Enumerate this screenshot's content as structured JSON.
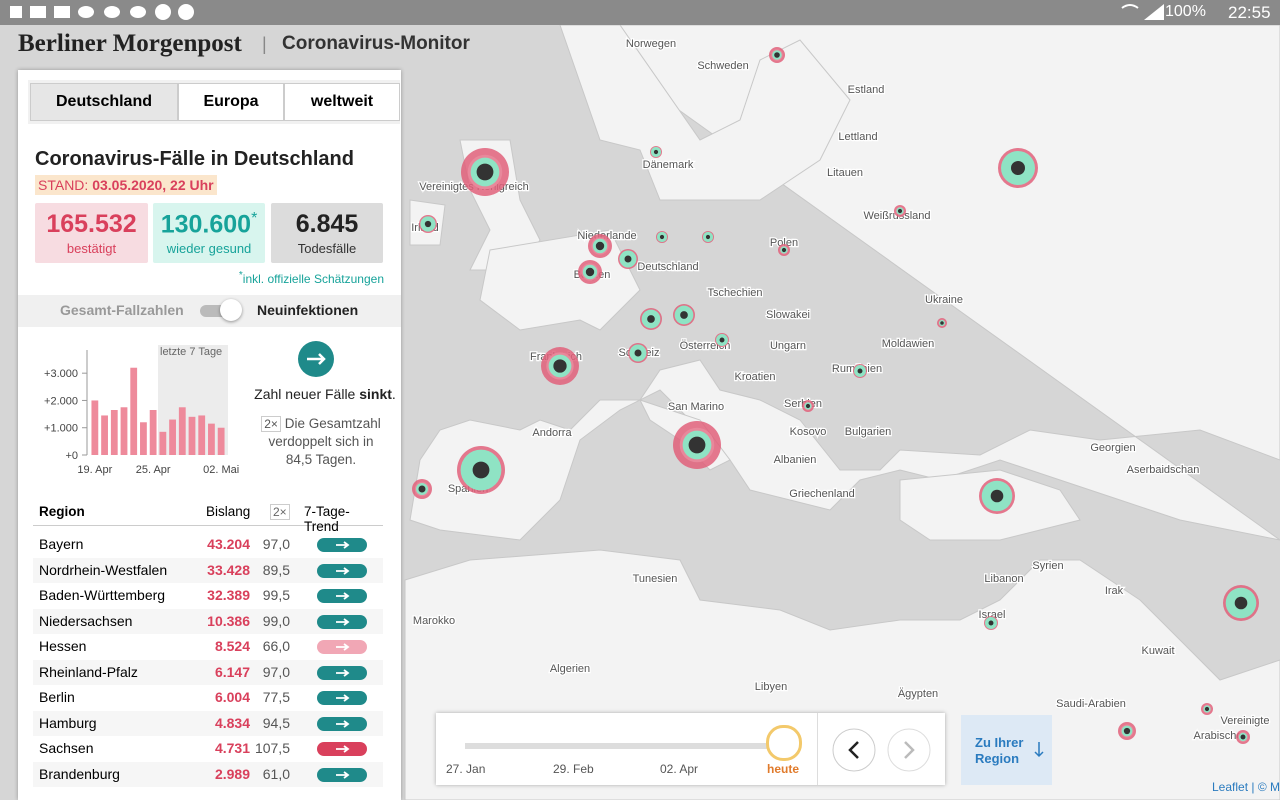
{
  "status_bar": {
    "battery": "100%",
    "time": "22:55"
  },
  "header": {
    "brand": "Berliner Morgenpost",
    "separator": "|",
    "title": "Coronavirus-Monitor"
  },
  "tabs": [
    "Deutschland",
    "Europa",
    "weltweit"
  ],
  "panel": {
    "title": "Coronavirus-Fälle in Deutschland",
    "stand_label": "STAND:",
    "stand_value": "03.05.2020, 22 Uhr",
    "stats": [
      {
        "value": "165.532",
        "label": "bestätigt",
        "color": "#d9405c",
        "bg": "#f7dce1"
      },
      {
        "value": "130.600",
        "mark": "*",
        "label": "wieder gesund",
        "color": "#17a39a",
        "bg": "#d8f5ee"
      },
      {
        "value": "6.845",
        "label": "Todesfälle",
        "color": "#222222",
        "bg": "#dcdcdc"
      }
    ],
    "footnote_mark": "*",
    "footnote": "inkl. offizielle Schätzungen",
    "toggle": {
      "left": "Gesamt-Fallzahlen",
      "right": "Neuinfektionen"
    }
  },
  "new_cases_chart": {
    "type": "bar",
    "color": "#ee8a9b",
    "shade_label": "letzte 7 Tage",
    "categories": [
      "19. Apr",
      null,
      null,
      null,
      null,
      null,
      "25. Apr",
      null,
      null,
      null,
      null,
      null,
      null,
      "02. Mai"
    ],
    "values": [
      2000,
      1450,
      1650,
      1750,
      3200,
      1200,
      1650,
      850,
      1300,
      1750,
      1400,
      1450,
      1150,
      1000
    ],
    "ylim": [
      0,
      3300
    ],
    "yticks": [
      {
        "value": 0,
        "label": "+0"
      },
      {
        "value": 1000,
        "label": "+1.000"
      },
      {
        "value": 2000,
        "label": "+2.000"
      },
      {
        "value": 3000,
        "label": "+3.000"
      }
    ]
  },
  "trend": {
    "text": "Zahl neuer Fälle",
    "word": "sinkt",
    "end": ".",
    "badge": "2×",
    "doubling_text": "Die Gesamtzahl verdoppelt sich in 84,5 Tagen."
  },
  "table": {
    "headers": [
      "Region",
      "Bislang",
      "2×",
      "7-Tage-Trend"
    ],
    "rows": [
      [
        "Bayern",
        "43.204",
        "97,0",
        "#1f8a8a"
      ],
      [
        "Nordrhein-Westfalen",
        "33.428",
        "89,5",
        "#1f8a8a"
      ],
      [
        "Baden-Württemberg",
        "32.389",
        "99,5",
        "#1f8a8a"
      ],
      [
        "Niedersachsen",
        "10.386",
        "99,0",
        "#1f8a8a"
      ],
      [
        "Hessen",
        "8.524",
        "66,0",
        "#f1a7b5"
      ],
      [
        "Rheinland-Pfalz",
        "6.147",
        "97,0",
        "#1f8a8a"
      ],
      [
        "Berlin",
        "6.004",
        "77,5",
        "#1f8a8a"
      ],
      [
        "Hamburg",
        "4.834",
        "94,5",
        "#1f8a8a"
      ],
      [
        "Sachsen",
        "4.731",
        "107,5",
        "#d9405c"
      ],
      [
        "Brandenburg",
        "2.989",
        "61,0",
        "#1f8a8a"
      ]
    ]
  },
  "map": {
    "labels": [
      "Norwegen",
      "Schweden",
      "Estland",
      "Lettland",
      "Dänemark",
      "Litauen",
      "Vereinigtes Königreich",
      "Irland",
      "Niederlande",
      "Weißrussland",
      "Polen",
      "Deutschland",
      "Belgien",
      "Tschechien",
      "Ukraine",
      "Slowakei",
      "Frankreich",
      "Schweiz",
      "Österreich",
      "Ungarn",
      "Moldawien",
      "Rumänien",
      "Kroatien",
      "San Marino",
      "Serbien",
      "Andorra",
      "Kosovo",
      "Bulgarien",
      "Albanien",
      "Georgien",
      "Aserbaidschan",
      "Spanien",
      "Griechenland",
      "Syrien",
      "Tunesien",
      "Libanon",
      "Irak",
      "Marokko",
      "Israel",
      "Kuwait",
      "Algerien",
      "Libyen",
      "Ägypten",
      "Saudi-Arabien",
      "Vereinigte",
      "Arabische"
    ],
    "attribution": "Leaflet | © M"
  },
  "timeline": {
    "labels": [
      "27. Jan",
      "29. Feb",
      "02. Apr",
      "heute"
    ],
    "region_button": "Zu Ihrer Region"
  }
}
